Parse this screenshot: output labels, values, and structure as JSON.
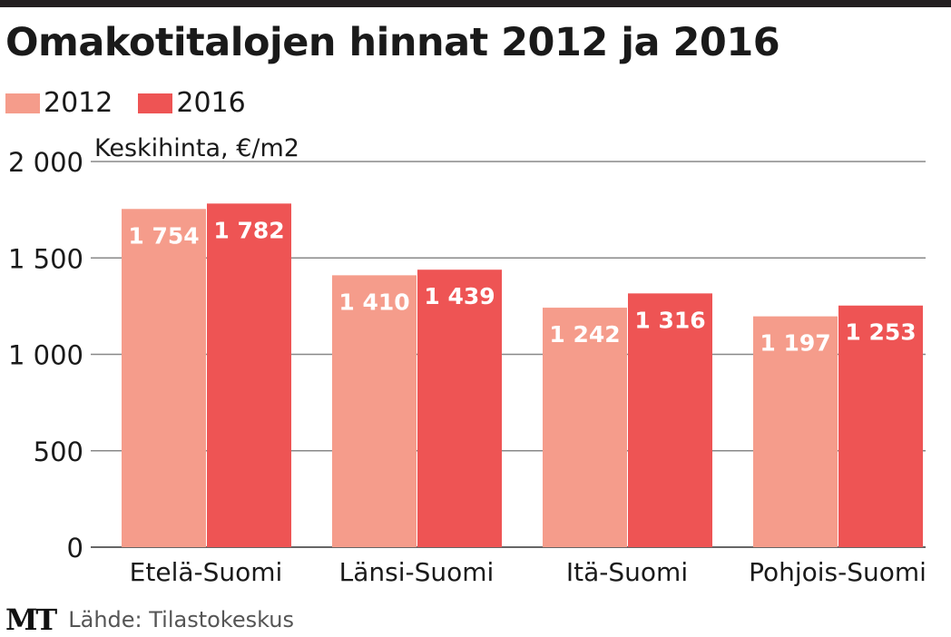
{
  "chart_data": {
    "type": "bar",
    "title": "Omakotitalojen hinnat 2012 ja 2016",
    "ylabel": "Keskihinta, €/m2",
    "xlabel": "",
    "categories": [
      "Etelä-Suomi",
      "Länsi-Suomi",
      "Itä-Suomi",
      "Pohjois-Suomi"
    ],
    "series": [
      {
        "name": "2012",
        "color": "#f59c8b",
        "values": [
          1754,
          1410,
          1242,
          1197
        ],
        "labels": [
          "1 754",
          "1 410",
          "1 242",
          "1 197"
        ]
      },
      {
        "name": "2016",
        "color": "#ee5454",
        "values": [
          1782,
          1439,
          1316,
          1253
        ],
        "labels": [
          "1 782",
          "1 439",
          "1 316",
          "1 253"
        ]
      }
    ],
    "ylim": [
      0,
      2000
    ],
    "yticks": [
      0,
      500,
      1000,
      1500,
      2000
    ],
    "ytick_labels": [
      "0",
      "500",
      "1 000",
      "1 500",
      "2 000"
    ],
    "grid": true,
    "legend": "top-left"
  },
  "footer": {
    "logo": "MT",
    "source": "Lähde: Tilastokeskus"
  }
}
